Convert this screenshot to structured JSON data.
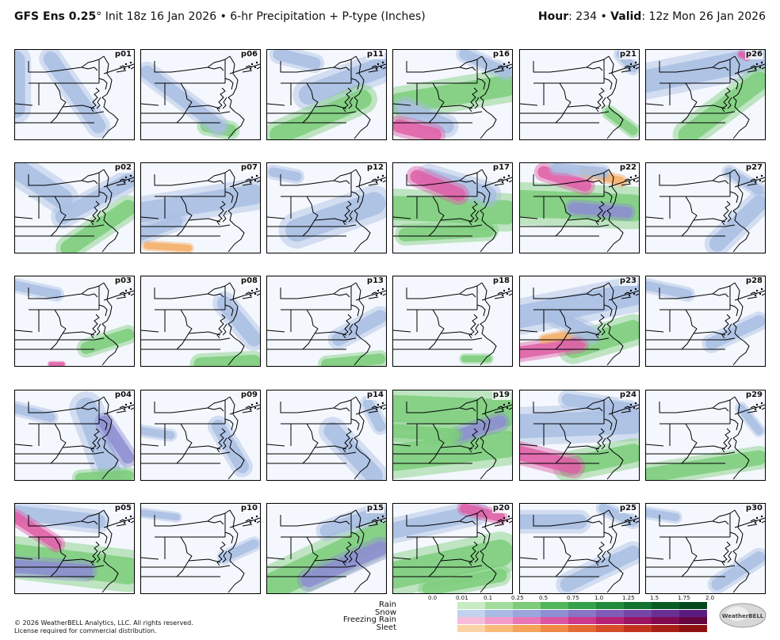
{
  "header": {
    "model": "GFS Ens 0.25",
    "degree": "°",
    "init": " Init 18z 16 Jan 2026 • 6-hr Precipitation + P-type (Inches)",
    "hour_label": "Hour",
    "hour_value": ": 234 • ",
    "valid_label": "Valid",
    "valid_value": ": 12z Mon 26 Jan 2026"
  },
  "panels": [
    {
      "id": "p01",
      "blobs": [
        [
          "s",
          30,
          0.0,
          0.12,
          0.0,
          0.65
        ],
        [
          "s",
          22,
          0.3,
          0.1,
          0.7,
          0.85
        ]
      ]
    },
    {
      "id": "p06",
      "blobs": [
        [
          "g",
          18,
          0.75,
          0.9,
          0.55,
          0.85
        ],
        [
          "s",
          20,
          0.65,
          0.85,
          0.05,
          0.25
        ]
      ]
    },
    {
      "id": "p11",
      "blobs": [
        [
          "s",
          30,
          0.35,
          0.5,
          0.95,
          0.2
        ],
        [
          "g",
          28,
          0.1,
          0.95,
          0.8,
          0.55
        ],
        [
          "s",
          18,
          0.1,
          0.05,
          0.4,
          0.15
        ]
      ]
    },
    {
      "id": "p16",
      "blobs": [
        [
          "g",
          32,
          0.05,
          0.6,
          0.95,
          0.4
        ],
        [
          "s",
          22,
          0.1,
          0.65,
          0.45,
          0.85
        ],
        [
          "p",
          20,
          0.05,
          0.85,
          0.35,
          0.95
        ],
        [
          "s",
          16,
          0.6,
          0.05,
          0.95,
          0.25
        ]
      ]
    },
    {
      "id": "p21",
      "blobs": [
        [
          "g",
          14,
          0.75,
          0.7,
          0.95,
          0.9
        ],
        [
          "s",
          14,
          0.85,
          0.05,
          0.95,
          0.2
        ]
      ]
    },
    {
      "id": "p26",
      "blobs": [
        [
          "s",
          34,
          0.0,
          0.35,
          0.95,
          0.1
        ],
        [
          "g",
          28,
          0.35,
          0.95,
          0.95,
          0.35
        ],
        [
          "p",
          8,
          0.8,
          0.05,
          0.85,
          0.08
        ]
      ]
    },
    {
      "id": "p02",
      "blobs": [
        [
          "s",
          30,
          0.0,
          0.05,
          0.4,
          0.4
        ],
        [
          "g",
          24,
          0.45,
          0.95,
          0.95,
          0.5
        ],
        [
          "s",
          22,
          0.4,
          0.6,
          0.95,
          0.2
        ]
      ]
    },
    {
      "id": "p07",
      "blobs": [
        [
          "s",
          30,
          0.0,
          0.55,
          0.95,
          0.35
        ],
        [
          "o",
          10,
          0.05,
          0.92,
          0.4,
          0.95
        ],
        [
          "s",
          18,
          0.0,
          0.8,
          0.3,
          0.65
        ]
      ]
    },
    {
      "id": "p12",
      "blobs": [
        [
          "s",
          34,
          0.25,
          0.75,
          0.9,
          0.45
        ],
        [
          "s",
          14,
          0.05,
          0.1,
          0.25,
          0.15
        ]
      ]
    },
    {
      "id": "p17",
      "blobs": [
        [
          "g",
          36,
          0.0,
          0.5,
          0.95,
          0.55
        ],
        [
          "s",
          24,
          0.3,
          0.15,
          0.8,
          0.35
        ],
        [
          "p",
          20,
          0.2,
          0.15,
          0.55,
          0.35
        ],
        [
          "g",
          20,
          0.1,
          0.8,
          0.8,
          0.75
        ]
      ]
    },
    {
      "id": "p22",
      "blobs": [
        [
          "g",
          40,
          0.0,
          0.45,
          0.95,
          0.5
        ],
        [
          "p",
          18,
          0.2,
          0.1,
          0.55,
          0.25
        ],
        [
          "o",
          12,
          0.55,
          0.1,
          0.85,
          0.2
        ],
        [
          "s",
          14,
          0.3,
          0.05,
          0.7,
          0.1
        ],
        [
          "d",
          16,
          0.45,
          0.5,
          0.9,
          0.55
        ]
      ]
    },
    {
      "id": "p27",
      "blobs": [
        [
          "s",
          24,
          0.6,
          0.9,
          0.95,
          0.45
        ],
        [
          "s",
          14,
          0.7,
          0.1,
          0.95,
          0.3
        ]
      ]
    },
    {
      "id": "p03",
      "blobs": [
        [
          "g",
          18,
          0.6,
          0.8,
          0.95,
          0.65
        ],
        [
          "s",
          14,
          0.0,
          0.1,
          0.35,
          0.2
        ],
        [
          "p",
          6,
          0.3,
          0.98,
          0.4,
          0.98
        ]
      ]
    },
    {
      "id": "p08",
      "blobs": [
        [
          "s",
          22,
          0.7,
          0.3,
          0.95,
          0.7
        ],
        [
          "g",
          20,
          0.5,
          0.98,
          0.95,
          0.95
        ]
      ]
    },
    {
      "id": "p13",
      "blobs": [
        [
          "s",
          20,
          0.6,
          0.7,
          0.95,
          0.45
        ],
        [
          "g",
          16,
          0.5,
          0.98,
          0.95,
          0.92
        ]
      ]
    },
    {
      "id": "p18",
      "blobs": [
        [
          "g",
          10,
          0.6,
          0.92,
          0.8,
          0.92
        ]
      ]
    },
    {
      "id": "p23",
      "blobs": [
        [
          "s",
          34,
          0.0,
          0.45,
          0.95,
          0.2
        ],
        [
          "g",
          30,
          0.45,
          0.8,
          0.95,
          0.6
        ],
        [
          "p",
          18,
          0.0,
          0.85,
          0.5,
          0.75
        ],
        [
          "o",
          10,
          0.2,
          0.7,
          0.4,
          0.65
        ],
        [
          "s",
          20,
          0.3,
          0.45,
          0.6,
          0.65
        ]
      ]
    },
    {
      "id": "p28",
      "blobs": [
        [
          "s",
          18,
          0.55,
          0.75,
          0.95,
          0.5
        ],
        [
          "s",
          14,
          0.0,
          0.1,
          0.35,
          0.2
        ]
      ]
    },
    {
      "id": "p04",
      "blobs": [
        [
          "s",
          32,
          0.6,
          0.2,
          0.8,
          0.9
        ],
        [
          "d",
          18,
          0.75,
          0.35,
          0.95,
          0.75
        ],
        [
          "g",
          16,
          0.55,
          0.98,
          0.95,
          0.95
        ],
        [
          "s",
          14,
          0.0,
          0.2,
          0.3,
          0.3
        ]
      ]
    },
    {
      "id": "p09",
      "blobs": [
        [
          "s",
          20,
          0.65,
          0.4,
          0.85,
          0.85
        ],
        [
          "s",
          12,
          0.0,
          0.45,
          0.25,
          0.5
        ]
      ]
    },
    {
      "id": "p14",
      "blobs": [
        [
          "s",
          26,
          0.55,
          0.45,
          0.9,
          0.95
        ],
        [
          "s",
          16,
          0.85,
          0.15,
          0.95,
          0.4
        ]
      ]
    },
    {
      "id": "p19",
      "blobs": [
        [
          "g",
          40,
          0.0,
          0.2,
          0.95,
          0.25
        ],
        [
          "g",
          40,
          0.0,
          0.75,
          0.95,
          0.6
        ],
        [
          "d",
          18,
          0.55,
          0.5,
          0.9,
          0.35
        ],
        [
          "g",
          20,
          0.0,
          0.45,
          0.5,
          0.5
        ]
      ]
    },
    {
      "id": "p24",
      "blobs": [
        [
          "s",
          36,
          0.0,
          0.4,
          0.95,
          0.35
        ],
        [
          "g",
          28,
          0.4,
          0.85,
          0.95,
          0.7
        ],
        [
          "p",
          22,
          0.0,
          0.7,
          0.45,
          0.85
        ],
        [
          "s",
          18,
          0.4,
          0.1,
          0.9,
          0.2
        ]
      ]
    },
    {
      "id": "p29",
      "blobs": [
        [
          "g",
          22,
          0.0,
          0.95,
          0.95,
          0.75
        ],
        [
          "s",
          12,
          0.8,
          0.2,
          0.95,
          0.45
        ]
      ]
    },
    {
      "id": "p05",
      "blobs": [
        [
          "g",
          40,
          0.0,
          0.6,
          0.95,
          0.75
        ],
        [
          "d",
          20,
          0.0,
          0.7,
          0.6,
          0.75
        ],
        [
          "s",
          22,
          0.0,
          0.1,
          0.7,
          0.2
        ],
        [
          "p",
          16,
          0.0,
          0.15,
          0.35,
          0.45
        ]
      ]
    },
    {
      "id": "p10",
      "blobs": [
        [
          "s",
          14,
          0.7,
          0.6,
          0.95,
          0.45
        ],
        [
          "s",
          10,
          0.0,
          0.1,
          0.3,
          0.15
        ]
      ]
    },
    {
      "id": "p15",
      "blobs": [
        [
          "g",
          40,
          0.0,
          0.95,
          0.95,
          0.35
        ],
        [
          "d",
          22,
          0.35,
          0.85,
          0.95,
          0.5
        ],
        [
          "s",
          20,
          0.5,
          0.3,
          0.95,
          0.1
        ]
      ]
    },
    {
      "id": "p20",
      "blobs": [
        [
          "g",
          40,
          0.0,
          0.8,
          0.9,
          0.55
        ],
        [
          "s",
          24,
          0.0,
          0.3,
          0.7,
          0.1
        ],
        [
          "p",
          14,
          0.6,
          0.05,
          0.9,
          0.15
        ],
        [
          "g",
          20,
          0.3,
          0.95,
          0.9,
          0.8
        ]
      ]
    },
    {
      "id": "p25",
      "blobs": [
        [
          "s",
          22,
          0.0,
          0.2,
          0.5,
          0.2
        ],
        [
          "s",
          22,
          0.4,
          0.9,
          0.95,
          0.55
        ],
        [
          "s",
          14,
          0.7,
          0.05,
          0.95,
          0.2
        ]
      ]
    },
    {
      "id": "p30",
      "blobs": [
        [
          "s",
          18,
          0.6,
          0.9,
          0.95,
          0.6
        ],
        [
          "s",
          12,
          0.0,
          0.1,
          0.25,
          0.15
        ]
      ]
    }
  ],
  "legend": {
    "ticks": [
      "0.0",
      "0.01",
      "0.1",
      "0.25",
      "0.5",
      "0.75",
      "1.0",
      "1.25",
      "1.5",
      "1.75",
      "2.0"
    ],
    "types": [
      {
        "name": "Rain",
        "colors": [
          "#ffffff",
          "#c8ebc3",
          "#a2dc9c",
          "#7ccc79",
          "#52b65a",
          "#35a14b",
          "#228a3c",
          "#137330",
          "#0a5c25",
          "#05471c"
        ]
      },
      {
        "name": "Snow",
        "colors": [
          "#ffffff",
          "#c2d3ee",
          "#a9bbe4",
          "#9aa6dc",
          "#8e8ed2",
          "#8775c5",
          "#7f5db8",
          "#7645a8",
          "#6a2f95",
          "#5a1c80"
        ]
      },
      {
        "name": "Freezing Rain",
        "colors": [
          "#ffffff",
          "#f7bcd9",
          "#f09bc8",
          "#e878b5",
          "#dd55a0",
          "#cc388a",
          "#b52275",
          "#9b1362",
          "#800a50",
          "#650540"
        ]
      },
      {
        "name": "Sleet",
        "colors": [
          "#ffffff",
          "#fcd3a6",
          "#f8bb7a",
          "#f4a35a",
          "#ef8944",
          "#e46a33",
          "#d54c27",
          "#c2331e",
          "#a81f16",
          "#8c1110"
        ]
      }
    ]
  },
  "colors": {
    "s": "#a9bfe3",
    "d": "#8e8ed2",
    "g": "#7dce7c",
    "p": "#e060a8",
    "o": "#f4b06a",
    "l": "#c8ebc3"
  },
  "copyright": [
    "© 2026 WeatherBELL Analytics, LLC. All rights reserved.",
    "License required for commercial distribution."
  ],
  "logo_text": "WeatherBELL"
}
